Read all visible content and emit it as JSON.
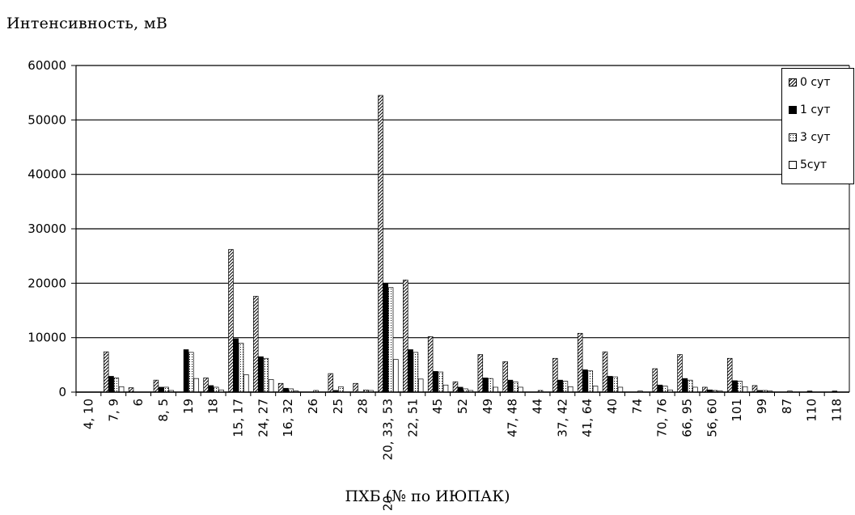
{
  "chart_data": {
    "type": "bar",
    "ylabel": "Интенсивность, мВ",
    "xlabel": "ПХБ (№ по ИЮПАК)",
    "ylim": [
      0,
      60000
    ],
    "yticks": [
      0,
      10000,
      20000,
      30000,
      40000,
      50000,
      60000
    ],
    "grid": true,
    "legend_position": "top-right",
    "categories": [
      "4, 10",
      "7, 9",
      "6",
      "8, 5",
      "19",
      "18",
      "15, 17",
      "24, 27",
      "16, 32",
      "26",
      "25",
      "28",
      "20, 33, 53",
      "22, 51",
      "45",
      "52",
      "49",
      "47, 48",
      "44",
      "37, 42",
      "41, 64",
      "40",
      "74",
      "70, 76",
      "66, 95",
      "56, 60",
      "101",
      "99",
      "87",
      "110",
      "118"
    ],
    "category_labels": [
      "4, 10",
      "7, 9",
      "6",
      "8, 5",
      "19",
      "18",
      "15, 17",
      "24, 27",
      "16, 32",
      "26",
      "25",
      "28",
      "20, 33, 53",
      "22, 51",
      "45",
      "52",
      "49",
      "47, 48",
      "44",
      "37, 42",
      "41, 64",
      "40",
      "74",
      "70, 76",
      "66, 95",
      "56, 60",
      "101",
      "99",
      "87",
      "110",
      "118"
    ],
    "label_break_line": "20",
    "series": [
      {
        "name": "0 сут",
        "color": "#ffffff",
        "pattern": "diagonal-hatch",
        "values": [
          0,
          7400,
          800,
          2200,
          0,
          2600,
          26200,
          17600,
          1600,
          0,
          3400,
          1600,
          54500,
          20600,
          10200,
          1900,
          6900,
          5600,
          0,
          6200,
          10800,
          7400,
          0,
          4300,
          6900,
          900,
          6200,
          1200,
          0,
          0,
          0
        ]
      },
      {
        "name": "1 сут",
        "color": "#000000",
        "pattern": "solid",
        "values": [
          0,
          2900,
          0,
          900,
          7800,
          1200,
          9800,
          6500,
          700,
          0,
          300,
          0,
          20000,
          7800,
          3800,
          900,
          2600,
          2200,
          0,
          2200,
          4100,
          2900,
          0,
          1300,
          2500,
          400,
          2100,
          300,
          0,
          200,
          200
        ]
      },
      {
        "name": "3 сут",
        "color": "#ffffff",
        "pattern": "dotted",
        "values": [
          0,
          2600,
          0,
          900,
          7300,
          900,
          9000,
          6200,
          600,
          300,
          1000,
          400,
          19200,
          7300,
          3700,
          600,
          2500,
          1900,
          300,
          2000,
          3900,
          2800,
          200,
          1100,
          2200,
          300,
          2000,
          300,
          200,
          0,
          0
        ]
      },
      {
        "name": "5сут",
        "color": "#ffffff",
        "pattern": "none",
        "values": [
          0,
          1000,
          0,
          300,
          2500,
          400,
          3200,
          2300,
          200,
          0,
          0,
          300,
          6000,
          2400,
          1300,
          300,
          900,
          900,
          0,
          1000,
          1100,
          900,
          0,
          400,
          900,
          200,
          1000,
          200,
          0,
          0,
          0
        ]
      }
    ]
  }
}
